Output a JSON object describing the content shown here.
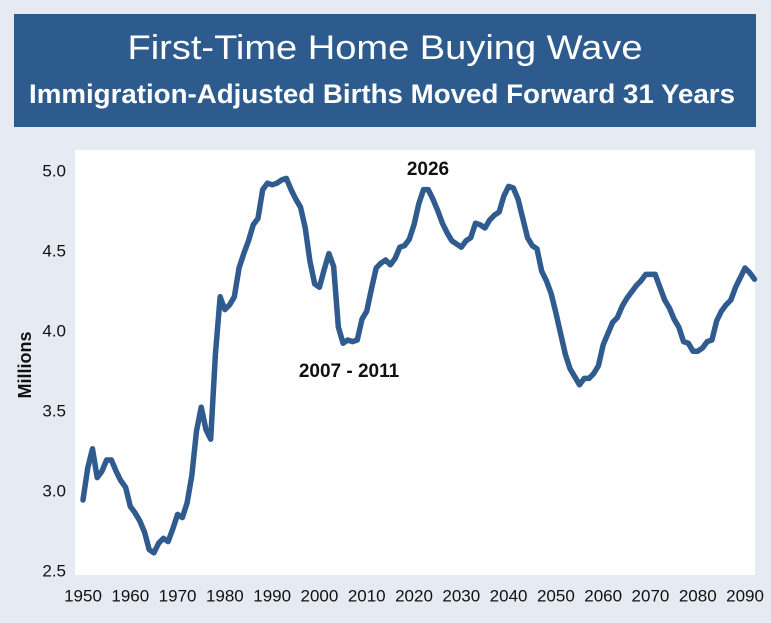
{
  "chart_data": {
    "type": "line",
    "title": "First-Time Home Buying Wave",
    "subtitle": "Immigration-Adjusted Births Moved Forward 31 Years",
    "y_label": "Millions",
    "annotations": [
      {
        "text": "2026"
      },
      {
        "text": "2007 - 2011"
      }
    ],
    "x": [
      1950,
      1951,
      1952,
      1953,
      1954,
      1955,
      1956,
      1957,
      1958,
      1959,
      1960,
      1961,
      1962,
      1963,
      1964,
      1965,
      1966,
      1967,
      1968,
      1969,
      1970,
      1971,
      1972,
      1973,
      1974,
      1975,
      1976,
      1977,
      1978,
      1979,
      1980,
      1981,
      1982,
      1983,
      1984,
      1985,
      1986,
      1987,
      1988,
      1989,
      1990,
      1991,
      1992,
      1993,
      1994,
      1995,
      1996,
      1997,
      1998,
      1999,
      2000,
      2001,
      2002,
      2003,
      2004,
      2005,
      2006,
      2007,
      2008,
      2009,
      2010,
      2011,
      2012,
      2013,
      2014,
      2015,
      2016,
      2017,
      2018,
      2019,
      2020,
      2021,
      2022,
      2023,
      2024,
      2025,
      2026,
      2027,
      2028,
      2029,
      2030,
      2031,
      2032,
      2033,
      2034,
      2035,
      2036,
      2037,
      2038,
      2039,
      2040,
      2041,
      2042,
      2043,
      2044,
      2045,
      2046,
      2047,
      2048,
      2049,
      2050,
      2051,
      2052,
      2053,
      2054,
      2055,
      2056,
      2057,
      2058,
      2059,
      2060,
      2061,
      2062,
      2063,
      2064,
      2065,
      2066,
      2067,
      2068,
      2069,
      2070,
      2071,
      2072,
      2073,
      2074,
      2075,
      2076,
      2077,
      2078,
      2079,
      2080,
      2081,
      2082,
      2083,
      2084,
      2085,
      2086,
      2087,
      2088,
      2089,
      2090,
      2091,
      2092
    ],
    "series": [
      {
        "color": "#2f5b8f",
        "values": [
          2.95,
          3.15,
          3.27,
          3.09,
          3.13,
          3.2,
          3.2,
          3.13,
          3.07,
          3.03,
          2.91,
          2.87,
          2.82,
          2.75,
          2.64,
          2.62,
          2.68,
          2.71,
          2.69,
          2.77,
          2.86,
          2.84,
          2.93,
          3.1,
          3.38,
          3.53,
          3.39,
          3.33,
          3.86,
          4.22,
          4.14,
          4.17,
          4.22,
          4.4,
          4.49,
          4.57,
          4.67,
          4.71,
          4.89,
          4.93,
          4.92,
          4.93,
          4.95,
          4.96,
          4.89,
          4.83,
          4.78,
          4.65,
          4.44,
          4.3,
          4.28,
          4.39,
          4.49,
          4.41,
          4.03,
          3.93,
          3.95,
          3.94,
          3.95,
          4.08,
          4.13,
          4.27,
          4.4,
          4.43,
          4.45,
          4.42,
          4.46,
          4.53,
          4.54,
          4.58,
          4.67,
          4.8,
          4.89,
          4.89,
          4.83,
          4.76,
          4.68,
          4.62,
          4.57,
          4.55,
          4.53,
          4.57,
          4.59,
          4.68,
          4.67,
          4.65,
          4.7,
          4.73,
          4.75,
          4.85,
          4.91,
          4.9,
          4.83,
          4.71,
          4.59,
          4.54,
          4.52,
          4.38,
          4.32,
          4.24,
          4.12,
          3.99,
          3.86,
          3.77,
          3.72,
          3.67,
          3.71,
          3.71,
          3.74,
          3.79,
          3.92,
          3.99,
          4.06,
          4.09,
          4.16,
          4.21,
          4.25,
          4.29,
          4.32,
          4.36,
          4.36,
          4.36,
          4.28,
          4.2,
          4.15,
          4.08,
          4.03,
          3.94,
          3.93,
          3.88,
          3.88,
          3.9,
          3.94,
          3.95,
          4.07,
          4.13,
          4.17,
          4.2,
          4.28,
          4.34,
          4.4,
          4.37,
          4.33
        ]
      }
    ],
    "xlim": [
      1950,
      2092
    ],
    "xticks": [
      1950,
      1960,
      1970,
      1980,
      1990,
      2000,
      2010,
      2020,
      2030,
      2040,
      2050,
      2060,
      2070,
      2080,
      2090
    ],
    "ylim": [
      2.5,
      5.15
    ],
    "yticks": [
      2.5,
      {
        "value": 3,
        "label": "3.0"
      },
      3.5,
      {
        "value": 4,
        "label": "4.0"
      },
      4.5,
      {
        "value": 5,
        "label": "5.0"
      }
    ],
    "grid": false
  }
}
